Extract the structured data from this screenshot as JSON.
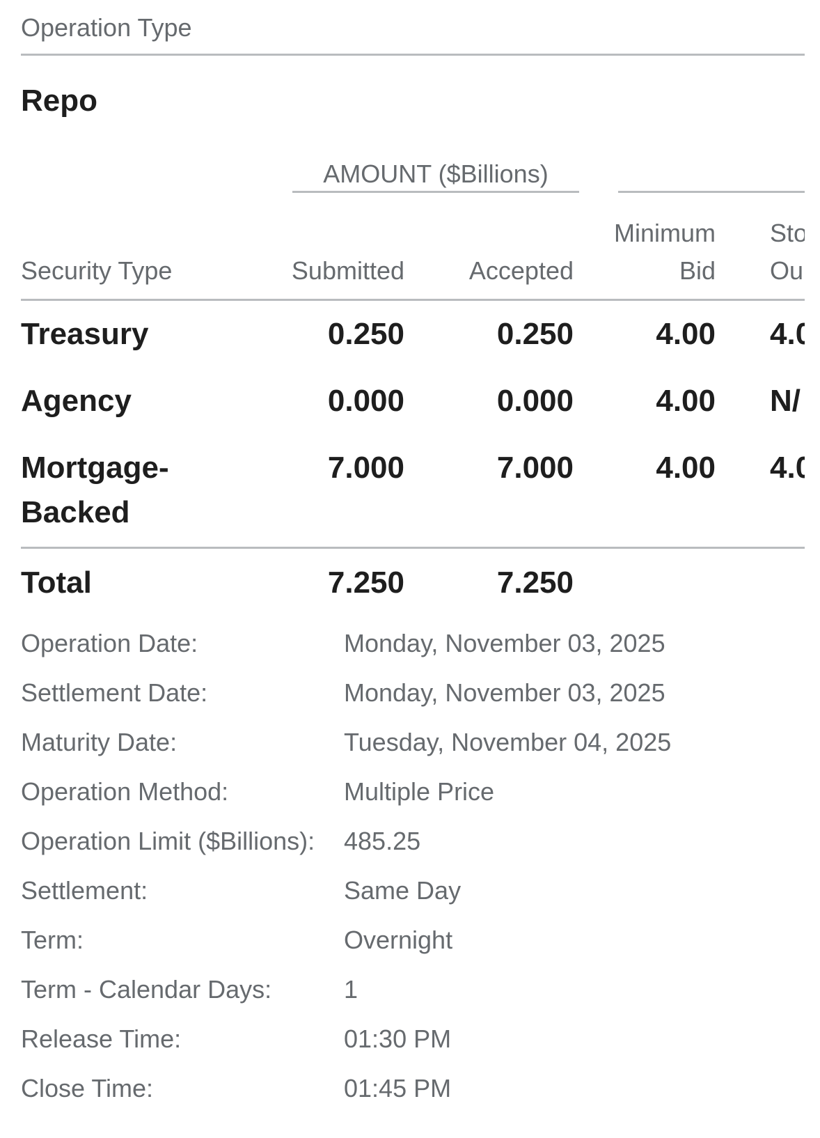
{
  "operation_type": {
    "label": "Operation Type",
    "value": "Repo"
  },
  "table": {
    "group_header": "AMOUNT ($Billions)",
    "columns": {
      "security_type": "Security Type",
      "submitted": "Submitted",
      "accepted": "Accepted",
      "minimum_bid_line1": "Minimum",
      "minimum_bid_line2": "Bid",
      "clipped_line1": "Sto",
      "clipped_line2": "Ou"
    },
    "rows": [
      {
        "security_type": "Treasury",
        "submitted": "0.250",
        "accepted": "0.250",
        "minimum_bid": "4.00",
        "clipped": "4.0"
      },
      {
        "security_type": "Agency",
        "submitted": "0.000",
        "accepted": "0.000",
        "minimum_bid": "4.00",
        "clipped": "N/"
      },
      {
        "security_type_line1": "Mortgage-",
        "security_type_line2": "Backed",
        "submitted": "7.000",
        "accepted": "7.000",
        "minimum_bid": "4.00",
        "clipped": "4.0"
      }
    ],
    "total": {
      "label": "Total",
      "submitted": "7.250",
      "accepted": "7.250"
    }
  },
  "details": [
    {
      "label": "Operation Date:",
      "value": "Monday, November 03, 2025"
    },
    {
      "label": "Settlement Date:",
      "value": "Monday, November 03, 2025"
    },
    {
      "label": "Maturity Date:",
      "value": "Tuesday, November 04, 2025"
    },
    {
      "label": "Operation Method:",
      "value": "Multiple Price"
    },
    {
      "label": "Operation Limit ($Billions):",
      "value": "485.25"
    },
    {
      "label": "Settlement:",
      "value": "Same Day"
    },
    {
      "label": "Term:",
      "value": "Overnight"
    },
    {
      "label": "Term - Calendar Days:",
      "value": "1"
    },
    {
      "label": "Release Time:",
      "value": "01:30 PM"
    },
    {
      "label": "Close Time:",
      "value": "01:45 PM"
    }
  ]
}
